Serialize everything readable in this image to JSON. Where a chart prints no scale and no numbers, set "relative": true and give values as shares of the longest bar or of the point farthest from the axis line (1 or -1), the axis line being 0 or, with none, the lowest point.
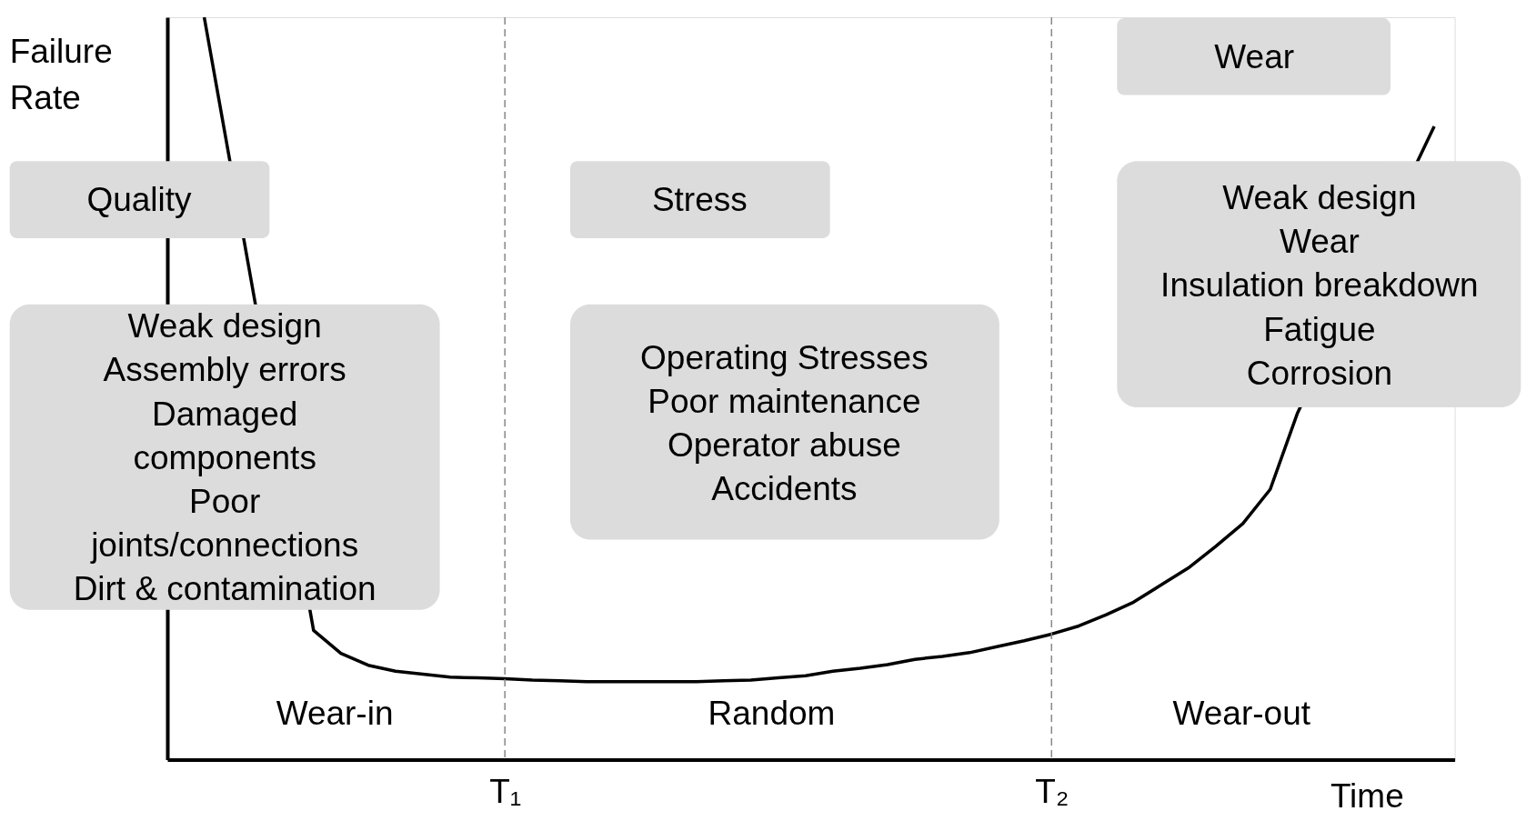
{
  "chart_data": {
    "type": "line",
    "relative": true,
    "xlabel": "Time",
    "ylabel": "Failure Rate",
    "color": "#000000",
    "line_style": "solid",
    "categories": [
      null,
      null,
      null,
      null,
      null,
      null,
      null,
      null,
      null,
      null,
      null,
      "T₁",
      null,
      null,
      null,
      null,
      null,
      null,
      null,
      null,
      null,
      null,
      null,
      null,
      null,
      null,
      null,
      null,
      null,
      null,
      null,
      "T₂",
      null,
      null,
      null,
      null,
      null,
      null,
      null,
      null,
      null,
      null,
      null,
      null,
      null,
      null
    ],
    "values": [
      1.0,
      null,
      null,
      null,
      0.174,
      0.143,
      0.127,
      0.119,
      0.115,
      0.111,
      0.11,
      0.109,
      0.107,
      0.106,
      0.105,
      0.105,
      0.105,
      0.105,
      0.105,
      0.106,
      0.107,
      0.11,
      0.113,
      0.119,
      0.123,
      0.128,
      0.135,
      0.139,
      0.144,
      0.152,
      0.16,
      0.169,
      0.18,
      0.195,
      0.212,
      0.235,
      0.258,
      0.287,
      0.318,
      0.364,
      0.467,
      null,
      null,
      null,
      null,
      0.853
    ],
    "ref_lines": [
      {
        "axis": "x",
        "value": "T₁",
        "color": "#888888",
        "line_style": "dashed"
      },
      {
        "axis": "x",
        "value": "T₂",
        "color": "#888888",
        "line_style": "dashed"
      }
    ],
    "annotations": [
      "Wear-in",
      "Random",
      "Wear-out",
      "Quality",
      "Stress",
      "Wear",
      "Weak design\nAssembly errors\nDamaged\ncomponents\nPoor\njoints/connections\nDirt & contamination",
      "Operating Stresses\nPoor maintenance\nOperator abuse\nAccidents",
      "Weak design\nWear\nInsulation breakdown\nFatigue\nCorrosion"
    ]
  }
}
